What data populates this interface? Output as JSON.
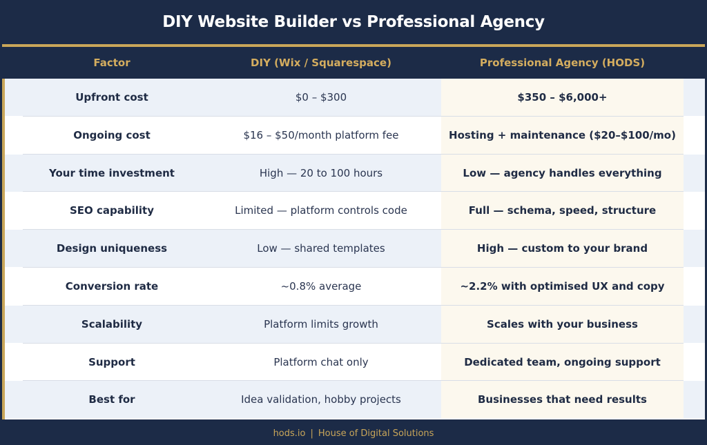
{
  "title": "DIY Website Builder vs Professional Agency",
  "columns": [
    "Factor",
    "DIY (Wix / Squarespace)",
    "Professional Agency (HODS)"
  ],
  "rows": [
    {
      "factor": "Upfront cost",
      "diy": "$0 – $300",
      "agency": "$350 – $6,000+"
    },
    {
      "factor": "Ongoing cost",
      "diy": "$16 – $50/month platform fee",
      "agency": "Hosting + maintenance ($20–$100/mo)"
    },
    {
      "factor": "Your time investment",
      "diy": "High — 20 to 100 hours",
      "agency": "Low — agency handles everything"
    },
    {
      "factor": "SEO capability",
      "diy": "Limited — platform controls code",
      "agency": "Full — schema, speed, structure"
    },
    {
      "factor": "Design uniqueness",
      "diy": "Low — shared templates",
      "agency": "High — custom to your brand"
    },
    {
      "factor": "Conversion rate",
      "diy": "~0.8% average",
      "agency": "~2.2% with optimised UX and copy"
    },
    {
      "factor": "Scalability",
      "diy": "Platform limits growth",
      "agency": "Scales with your business"
    },
    {
      "factor": "Support",
      "diy": "Platform chat only",
      "agency": "Dedicated team, ongoing support"
    },
    {
      "factor": "Best for",
      "diy": "Idea validation, hobby projects",
      "agency": "Businesses that need results"
    }
  ],
  "footer": {
    "site": "hods.io",
    "separator": "|",
    "company": "House of Digital Solutions"
  },
  "colors": {
    "navy": "#1c2b47",
    "gold": "#c9a659",
    "row_alt": "#ecf1f8",
    "agency_bg": "#fcf8ee"
  }
}
